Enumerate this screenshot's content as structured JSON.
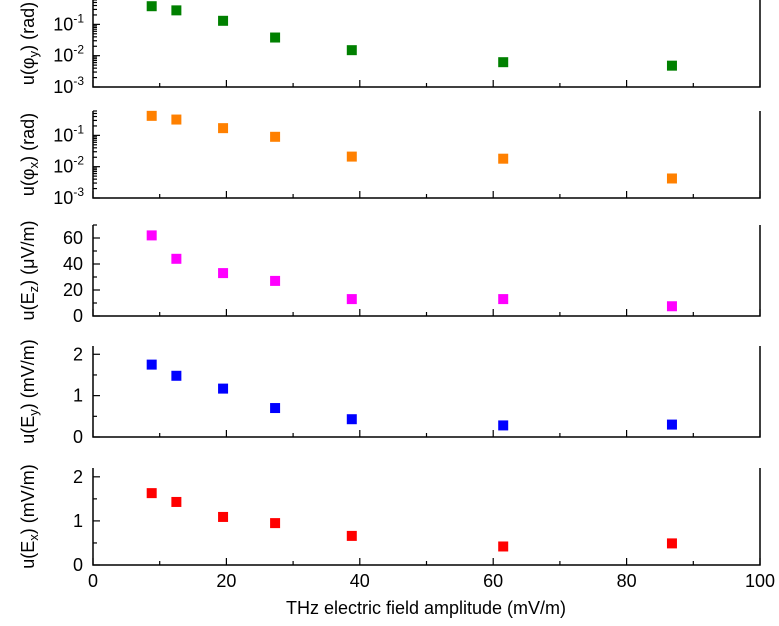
{
  "chart_data": {
    "type": "scatter",
    "xlabel": "THz electric field amplitude (mV/m)",
    "xlim": [
      0,
      100
    ],
    "xticks": [
      "0",
      "20",
      "40",
      "60",
      "80",
      "100"
    ],
    "x": [
      8.8,
      12.5,
      19.5,
      27.3,
      38.8,
      61.5,
      86.8
    ],
    "panels": [
      {
        "ylabel": "u(φ_y) (rad)",
        "yscale": "log",
        "ylim": [
          0.001,
          0.6
        ],
        "yticks": [
          {
            "v": 0.1,
            "base": "10",
            "exp": "-1"
          },
          {
            "v": 0.01,
            "base": "10",
            "exp": "-2"
          },
          {
            "v": 0.001,
            "base": "10",
            "exp": "-3"
          }
        ],
        "color": "#008000",
        "values": [
          0.38,
          0.28,
          0.13,
          0.038,
          0.015,
          0.0062,
          0.0048
        ]
      },
      {
        "ylabel": "u(φ_x) (rad)",
        "yscale": "log",
        "ylim": [
          0.001,
          0.6
        ],
        "yticks": [
          {
            "v": 0.1,
            "base": "10",
            "exp": "-1"
          },
          {
            "v": 0.01,
            "base": "10",
            "exp": "-2"
          },
          {
            "v": 0.001,
            "base": "10",
            "exp": "-3"
          }
        ],
        "color": "#ff8000",
        "values": [
          0.42,
          0.32,
          0.17,
          0.09,
          0.021,
          0.018,
          0.0042
        ]
      },
      {
        "ylabel": "u(E_z) (μV/m)",
        "yscale": "linear",
        "ylim": [
          0,
          70
        ],
        "yticks": [
          {
            "v": 0,
            "label": "0"
          },
          {
            "v": 20,
            "label": "20"
          },
          {
            "v": 40,
            "label": "40"
          },
          {
            "v": 60,
            "label": "60"
          }
        ],
        "color": "#ff00ff",
        "values": [
          62,
          44,
          33,
          27,
          13,
          13,
          7.5
        ]
      },
      {
        "ylabel": "u(E_y) (mV/m)",
        "yscale": "linear",
        "ylim": [
          0,
          2.2
        ],
        "yticks": [
          {
            "v": 0,
            "label": "0"
          },
          {
            "v": 1,
            "label": "1"
          },
          {
            "v": 2,
            "label": "2"
          }
        ],
        "color": "#0000ff",
        "values": [
          1.75,
          1.48,
          1.17,
          0.7,
          0.43,
          0.28,
          0.3
        ]
      },
      {
        "ylabel": "u(E_x) (mV/m)",
        "yscale": "linear",
        "ylim": [
          0,
          2.2
        ],
        "yticks": [
          {
            "v": 0,
            "label": "0"
          },
          {
            "v": 1,
            "label": "1"
          },
          {
            "v": 2,
            "label": "2"
          }
        ],
        "color": "#ff0000",
        "values": [
          1.63,
          1.43,
          1.09,
          0.95,
          0.66,
          0.42,
          0.49
        ]
      }
    ]
  }
}
